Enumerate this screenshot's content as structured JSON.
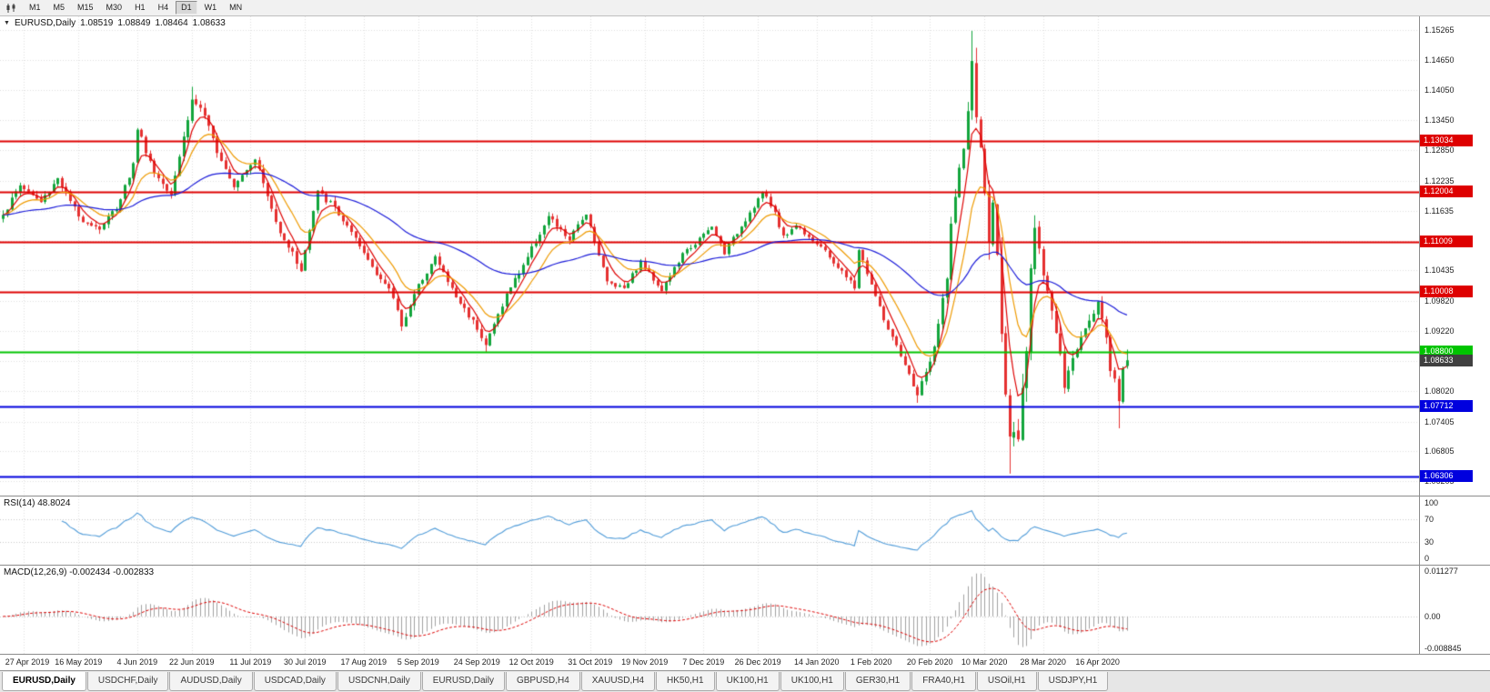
{
  "toolbar": {
    "timeframes": [
      "M1",
      "M5",
      "M15",
      "M30",
      "H1",
      "H4",
      "D1",
      "W1",
      "MN"
    ],
    "active_timeframe": "D1"
  },
  "chart": {
    "title": "EURUSD,Daily",
    "open": "1.08519",
    "high": "1.08849",
    "low": "1.08464",
    "close": "1.08633",
    "rsi_label": "RSI(14) 48.8024",
    "macd_label": "MACD(12,26,9) -0.002434 -0.002833"
  },
  "chart_data": {
    "type": "candlestick",
    "symbol": "EURUSD",
    "timeframe": "Daily",
    "ohlc_display": [
      1.08519,
      1.08849,
      1.08464,
      1.08633
    ],
    "current_price": "1.08633",
    "candle_count": 269,
    "data_width_fraction": 0.795,
    "price_min": 1.0592,
    "price_max": 1.1553,
    "seed": 1337,
    "anchors": [
      [
        0,
        1.1155,
        0.0013
      ],
      [
        4,
        1.1215,
        0.0013
      ],
      [
        9,
        1.118,
        0.0012
      ],
      [
        13,
        1.123,
        0.0012
      ],
      [
        18,
        1.115,
        0.0012
      ],
      [
        23,
        1.1128,
        0.0011
      ],
      [
        27,
        1.117,
        0.0012
      ],
      [
        31,
        1.1255,
        0.0013
      ],
      [
        32,
        1.133,
        0.0013
      ],
      [
        36,
        1.124,
        0.0012
      ],
      [
        40,
        1.12,
        0.0012
      ],
      [
        45,
        1.1385,
        0.0014
      ],
      [
        47,
        1.137,
        0.0012
      ],
      [
        51,
        1.1285,
        0.0012
      ],
      [
        55,
        1.1215,
        0.0011
      ],
      [
        60,
        1.127,
        0.0011
      ],
      [
        65,
        1.114,
        0.0012
      ],
      [
        71,
        1.1045,
        0.0013
      ],
      [
        75,
        1.12,
        0.0013
      ],
      [
        79,
        1.117,
        0.0012
      ],
      [
        85,
        1.109,
        0.0011
      ],
      [
        93,
        1.099,
        0.0011
      ],
      [
        95,
        1.0935,
        0.0011
      ],
      [
        100,
        1.103,
        0.0012
      ],
      [
        103,
        1.107,
        0.0011
      ],
      [
        108,
        1.099,
        0.0011
      ],
      [
        113,
        1.093,
        0.0011
      ],
      [
        115,
        1.0895,
        0.0011
      ],
      [
        120,
        1.0995,
        0.0011
      ],
      [
        123,
        1.104,
        0.0011
      ],
      [
        130,
        1.115,
        0.0011
      ],
      [
        135,
        1.1105,
        0.001
      ],
      [
        139,
        1.116,
        0.001
      ],
      [
        144,
        1.102,
        0.001
      ],
      [
        148,
        1.101,
        0.0009
      ],
      [
        152,
        1.106,
        0.0009
      ],
      [
        157,
        1.1005,
        0.0009
      ],
      [
        162,
        1.1075,
        0.0009
      ],
      [
        169,
        1.113,
        0.0009
      ],
      [
        172,
        1.108,
        0.0009
      ],
      [
        181,
        1.12,
        0.0009
      ],
      [
        184,
        1.116,
        0.0009
      ],
      [
        186,
        1.111,
        0.0009
      ],
      [
        189,
        1.1135,
        0.0009
      ],
      [
        195,
        1.109,
        0.0008
      ],
      [
        203,
        1.101,
        0.0009
      ],
      [
        204,
        1.1085,
        0.0009
      ],
      [
        210,
        1.0945,
        0.0009
      ],
      [
        214,
        1.087,
        0.0009
      ],
      [
        218,
        1.0795,
        0.001
      ],
      [
        222,
        1.0885,
        0.0012
      ],
      [
        225,
        1.1035,
        0.0016
      ],
      [
        226,
        1.1135,
        0.002
      ],
      [
        228,
        1.124,
        0.0022
      ],
      [
        229,
        1.129,
        0.0024
      ],
      [
        231,
        1.1445,
        0.0038
      ],
      [
        233,
        1.128,
        0.0038
      ],
      [
        235,
        1.1105,
        0.0042
      ],
      [
        236,
        1.118,
        0.0038
      ],
      [
        238,
        1.094,
        0.0048
      ],
      [
        240,
        1.069,
        0.0048
      ],
      [
        242,
        1.07,
        0.0042
      ],
      [
        243,
        1.079,
        0.0038
      ],
      [
        244,
        1.0885,
        0.0036
      ],
      [
        245,
        1.103,
        0.0034
      ],
      [
        246,
        1.114,
        0.003
      ],
      [
        248,
        1.1045,
        0.0026
      ],
      [
        251,
        1.092,
        0.0022
      ],
      [
        253,
        1.081,
        0.002
      ],
      [
        256,
        1.089,
        0.0019
      ],
      [
        258,
        1.0935,
        0.0017
      ],
      [
        261,
        1.098,
        0.0015
      ],
      [
        263,
        1.091,
        0.0015
      ],
      [
        264,
        1.0845,
        0.0014
      ],
      [
        265,
        1.083,
        0.0014
      ],
      [
        266,
        1.0785,
        0.0014
      ],
      [
        267,
        1.0845,
        0.0013
      ],
      [
        268,
        1.08633,
        0.0012
      ]
    ],
    "wick_overrides": [
      {
        "i": 45,
        "high": 1.1412
      },
      {
        "i": 115,
        "low": 1.0879
      },
      {
        "i": 218,
        "low": 1.0778
      },
      {
        "i": 231,
        "high": 1.1524
      },
      {
        "i": 240,
        "low": 1.0636
      },
      {
        "i": 266,
        "low": 1.0727
      }
    ],
    "y_ticks": [
      "1.15265",
      "1.14650",
      "1.14050",
      "1.13450",
      "1.12850",
      "1.12235",
      "1.11635",
      "1.11035",
      "1.10435",
      "1.09820",
      "1.09220",
      "1.08620",
      "1.08020",
      "1.07405",
      "1.06805",
      "1.06205"
    ],
    "x_labels": [
      {
        "i": 5,
        "label": "27 Apr 2019"
      },
      {
        "i": 18,
        "label": "16 May 2019"
      },
      {
        "i": 32,
        "label": "4 Jun 2019"
      },
      {
        "i": 45,
        "label": "22 Jun 2019"
      },
      {
        "i": 59,
        "label": "11 Jul 2019"
      },
      {
        "i": 72,
        "label": "30 Jul 2019"
      },
      {
        "i": 86,
        "label": "17 Aug 2019"
      },
      {
        "i": 99,
        "label": "5 Sep 2019"
      },
      {
        "i": 113,
        "label": "24 Sep 2019"
      },
      {
        "i": 126,
        "label": "12 Oct 2019"
      },
      {
        "i": 140,
        "label": "31 Oct 2019"
      },
      {
        "i": 153,
        "label": "19 Nov 2019"
      },
      {
        "i": 167,
        "label": "7 Dec 2019"
      },
      {
        "i": 180,
        "label": "26 Dec 2019"
      },
      {
        "i": 194,
        "label": "14 Jan 2020"
      },
      {
        "i": 207,
        "label": "1 Feb 2020"
      },
      {
        "i": 221,
        "label": "20 Feb 2020"
      },
      {
        "i": 234,
        "label": "10 Mar 2020"
      },
      {
        "i": 248,
        "label": "28 Mar 2020"
      },
      {
        "i": 261,
        "label": "16 Apr 2020"
      }
    ],
    "hlines": [
      {
        "price": 1.13034,
        "badge": "1.13034",
        "color": "#DE0000",
        "width": 2
      },
      {
        "price": 1.12004,
        "badge": "1.12004",
        "color": "#DE0000",
        "width": 2
      },
      {
        "price": 1.11009,
        "badge": "1.11009",
        "color": "#DE0000",
        "width": 2
      },
      {
        "price": 1.10008,
        "badge": "1.10008",
        "color": "#DE0000",
        "width": 2
      },
      {
        "price": 1.088,
        "badge": "1.08800",
        "color": "#00C400",
        "width": 2
      },
      {
        "price": 1.07712,
        "badge": "1.07712",
        "color": "#0000DE",
        "width": 2
      },
      {
        "price": 1.06306,
        "badge": "1.06306",
        "color": "#0000DE",
        "width": 2
      }
    ],
    "moving_averages": [
      {
        "period": 5,
        "color": "#DD0000"
      },
      {
        "period": 12,
        "color": "#EE9A00"
      },
      {
        "period": 55,
        "color": "#1A1AD8"
      }
    ],
    "indicators": {
      "rsi": {
        "period": 14,
        "value": "48.8024",
        "levels": [
          "100",
          "70",
          "30",
          "0"
        ],
        "color": "#4F9BD8"
      },
      "macd": {
        "params": "12,26,9",
        "values": [
          "-0.002434",
          "-0.002833"
        ],
        "axis_max": "0.011277",
        "axis_zero": "0.00",
        "axis_min": "-0.008845",
        "hist_color": "#A0A0A0",
        "signal_color": "#DD0000"
      }
    }
  },
  "colors": {
    "up": "#12A53C",
    "down": "#E53030",
    "grid": "#DFDFDF",
    "level_dotted": "#C8C8C8",
    "current_badge_bg": "#404040"
  },
  "bottom_tabs": [
    "EURUSD,Daily",
    "USDCHF,Daily",
    "AUDUSD,Daily",
    "USDCAD,Daily",
    "USDCNH,Daily",
    "EURUSD,Daily",
    "GBPUSD,H4",
    "XAUUSD,H4",
    "HK50,H1",
    "UK100,H1",
    "UK100,H1",
    "GER30,H1",
    "FRA40,H1",
    "USOil,H1",
    "USDJPY,H1"
  ],
  "active_tab": 0
}
